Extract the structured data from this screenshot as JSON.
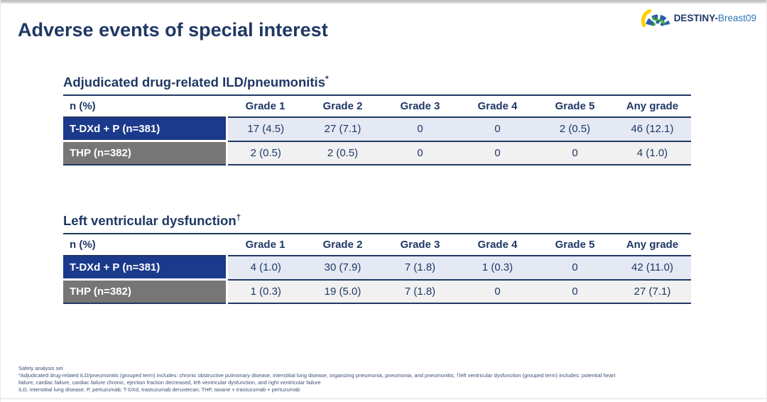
{
  "slide": {
    "title": "Adverse events of special interest"
  },
  "logo": {
    "name_bold": "DESTINY-",
    "name_light": "Breast09"
  },
  "tables": [
    {
      "title": "Adjudicated drug-related ILD/pneumonitis",
      "title_marker": "*",
      "columns": [
        "n (%)",
        "Grade 1",
        "Grade 2",
        "Grade 3",
        "Grade 4",
        "Grade 5",
        "Any grade"
      ],
      "rows": [
        {
          "label": "T-DXd + P (n=381)",
          "theme": "navy",
          "values": [
            "17 (4.5)",
            "27 (7.1)",
            "0",
            "0",
            "2 (0.5)",
            "46 (12.1)"
          ]
        },
        {
          "label": "THP (n=382)",
          "theme": "gray",
          "values": [
            "2 (0.5)",
            "2 (0.5)",
            "0",
            "0",
            "0",
            "4 (1.0)"
          ]
        }
      ]
    },
    {
      "title": "Left ventricular dysfunction",
      "title_marker": "†",
      "columns": [
        "n (%)",
        "Grade 1",
        "Grade 2",
        "Grade 3",
        "Grade 4",
        "Grade 5",
        "Any grade"
      ],
      "rows": [
        {
          "label": "T-DXd + P (n=381)",
          "theme": "navy",
          "values": [
            "4 (1.0)",
            "30 (7.9)",
            "7 (1.8)",
            "1 (0.3)",
            "0",
            "42 (11.0)"
          ]
        },
        {
          "label": "THP (n=382)",
          "theme": "gray",
          "values": [
            "1 (0.3)",
            "19 (5.0)",
            "7 (1.8)",
            "0",
            "0",
            "27 (7.1)"
          ]
        }
      ]
    }
  ],
  "footer": {
    "lines": [
      "Safety analysis set",
      "*Adjudicated drug-related ILD/pneumonitis (grouped term) includes: chronic obstructive pulmonary disease, interstitial lung disease, organizing pneumonia, pneumonia, and pneumonitis; †left ventricular dysfunction (grouped term) includes: potential heart",
      "failure, cardiac failure, cardiac failure chronic, ejection fraction decreased, left ventricular dysfunction, and right ventricular failure",
      "ILD, interstitial lung disease; P, pertuzumab; T-DXd, trastuzumab deruxtecan; THP, taxane + trastuzumab + pertuzumab"
    ]
  },
  "colors": {
    "navy_text": "#1f3864",
    "navy_row_bg": "#1b3a8c",
    "gray_row_bg": "#767676",
    "navy_cell_bg": "#e4e9f4",
    "gray_cell_bg": "#f1f1f2",
    "brand_light_blue": "#2e74b5",
    "logo_yellow": "#ffd100",
    "logo_blue": "#2d5fa6",
    "logo_green": "#3faa35"
  }
}
